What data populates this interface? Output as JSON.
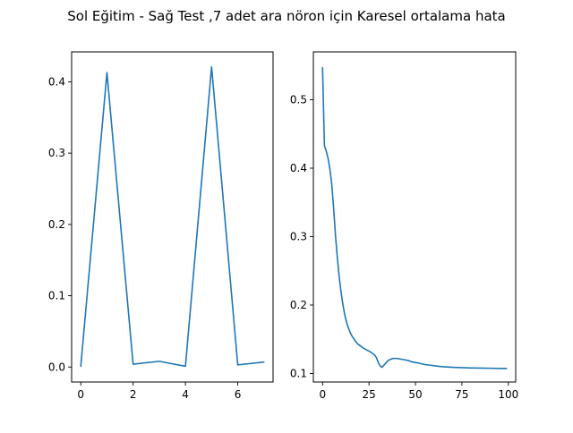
{
  "figure": {
    "title": "Sol Eğitim - Sağ Test ,7 adet ara nöron için Karesel ortalama hata"
  },
  "colors": {
    "series": "#1f77b4",
    "axes": "#000000",
    "background": "#ffffff"
  },
  "chart_data": [
    {
      "type": "line",
      "title": "",
      "xlabel": "",
      "ylabel": "",
      "grid": false,
      "xlim": [
        -0.35,
        7.35
      ],
      "ylim": [
        -0.021,
        0.442
      ],
      "xticks": [
        0,
        2,
        4,
        6
      ],
      "xtick_labels": [
        "0",
        "2",
        "4",
        "6"
      ],
      "yticks": [
        0.0,
        0.1,
        0.2,
        0.3,
        0.4
      ],
      "ytick_labels": [
        "0.0",
        "0.1",
        "0.2",
        "0.3",
        "0.4"
      ],
      "series": [
        {
          "x": [
            0,
            1,
            2,
            3,
            4,
            5,
            6,
            7
          ],
          "values": [
            0.001,
            0.413,
            0.004,
            0.008,
            0.001,
            0.421,
            0.003,
            0.007
          ]
        }
      ]
    },
    {
      "type": "line",
      "title": "",
      "xlabel": "",
      "ylabel": "",
      "grid": false,
      "xlim": [
        -4.95,
        103.95
      ],
      "ylim": [
        0.0875,
        0.57
      ],
      "xticks": [
        0,
        25,
        50,
        75,
        100
      ],
      "xtick_labels": [
        "0",
        "25",
        "50",
        "75",
        "100"
      ],
      "yticks": [
        0.1,
        0.2,
        0.3,
        0.4,
        0.5
      ],
      "ytick_labels": [
        "0.1",
        "0.2",
        "0.3",
        "0.4",
        "0.5"
      ],
      "series": [
        {
          "x": [
            0,
            1,
            2,
            3,
            4,
            5,
            6,
            7,
            8,
            9,
            10,
            11,
            12,
            13,
            14,
            15,
            16,
            17,
            18,
            19,
            20,
            22,
            24,
            26,
            28,
            29,
            30,
            31,
            32,
            33,
            34,
            35,
            36,
            38,
            40,
            42,
            44,
            46,
            48,
            50,
            52,
            55,
            58,
            61,
            64,
            67,
            70,
            75,
            80,
            85,
            90,
            95,
            99
          ],
          "values": [
            0.547,
            0.433,
            0.425,
            0.414,
            0.398,
            0.375,
            0.34,
            0.3,
            0.268,
            0.24,
            0.218,
            0.2,
            0.185,
            0.174,
            0.166,
            0.159,
            0.154,
            0.15,
            0.146,
            0.143,
            0.141,
            0.137,
            0.134,
            0.131,
            0.127,
            0.123,
            0.116,
            0.111,
            0.109,
            0.112,
            0.115,
            0.118,
            0.12,
            0.122,
            0.122,
            0.121,
            0.12,
            0.119,
            0.117,
            0.116,
            0.115,
            0.113,
            0.112,
            0.111,
            0.11,
            0.1095,
            0.109,
            0.1085,
            0.108,
            0.1078,
            0.1076,
            0.1074,
            0.1072
          ]
        }
      ]
    }
  ]
}
